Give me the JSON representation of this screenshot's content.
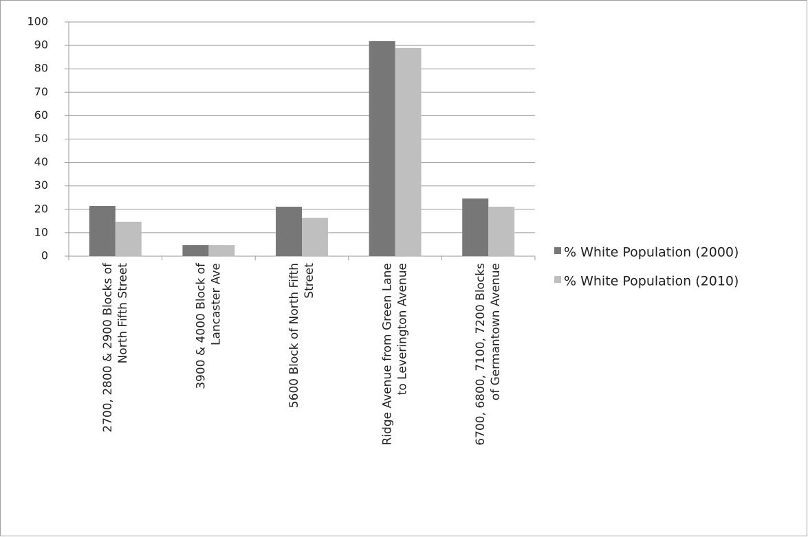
{
  "chart_data": {
    "type": "bar",
    "categories": [
      "2700, 2800 & 2900 Blocks of\nNorth Fifth Street",
      "3900 & 4000 Block of\nLancaster Ave",
      "5600 Block of North Fifth\nStreet",
      "Ridge Avenue from Green Lane\nto Leverington Avenue",
      "6700, 6800, 7100, 7200 Blocks\nof Germantown Avenue"
    ],
    "series": [
      {
        "name": "% White Population (2000)",
        "color": "#777777",
        "values": [
          21.4,
          4.7,
          21.1,
          91.8,
          24.6
        ]
      },
      {
        "name": "% White Population (2010)",
        "color": "#bfbfbf",
        "values": [
          14.7,
          4.7,
          16.4,
          88.9,
          21.1
        ]
      }
    ],
    "ylim": [
      0,
      100
    ],
    "yticks": [
      0,
      10,
      20,
      30,
      40,
      50,
      60,
      70,
      80,
      90,
      100
    ],
    "grid": true,
    "legend": "right"
  }
}
